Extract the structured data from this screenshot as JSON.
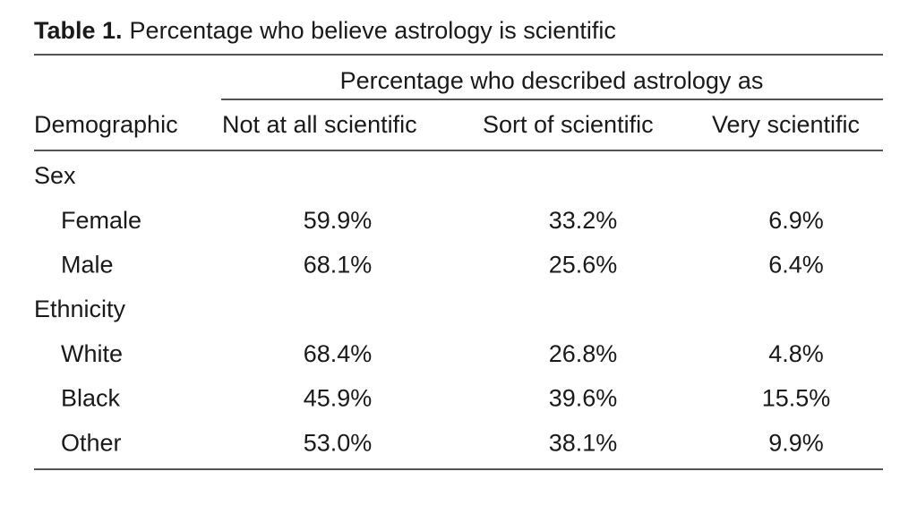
{
  "title": {
    "label": "Table 1.",
    "text": "Percentage who believe astrology is scientific"
  },
  "table": {
    "spanner": "Percentage who described astrology as",
    "columns": [
      "Demographic",
      "Not at all scientific",
      "Sort of scientific",
      "Very scientific"
    ],
    "groups": [
      {
        "name": "Sex",
        "rows": [
          {
            "label": "Female",
            "cells": [
              "59.9%",
              "33.2%",
              "6.9%"
            ]
          },
          {
            "label": "Male",
            "cells": [
              "68.1%",
              "25.6%",
              "6.4%"
            ]
          }
        ]
      },
      {
        "name": "Ethnicity",
        "rows": [
          {
            "label": "White",
            "cells": [
              "68.4%",
              "26.8%",
              "4.8%"
            ]
          },
          {
            "label": "Black",
            "cells": [
              "45.9%",
              "39.6%",
              "15.5%"
            ]
          },
          {
            "label": "Other",
            "cells": [
              "53.0%",
              "38.1%",
              "9.9%"
            ]
          }
        ]
      }
    ]
  }
}
